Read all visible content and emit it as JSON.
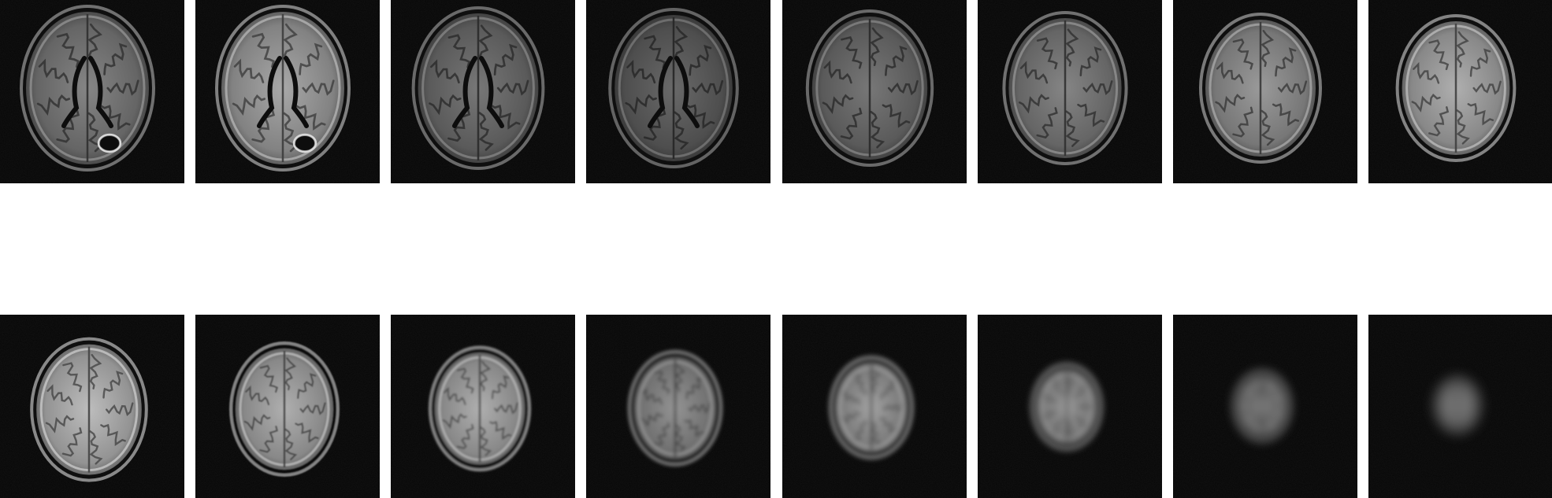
{
  "figure": {
    "rows": 2,
    "columns": 8,
    "background_color": "#ffffff",
    "tile_background_color": "#050505",
    "image_kind": "axial brain MRI slices (FLAIR-like), ascending from ventricles to vertex",
    "slices": [
      {
        "row": 1,
        "index": 1,
        "brightness": 0.55,
        "skull_scale": 1.0,
        "blur": 0.0,
        "ventricles": true,
        "lesion": true
      },
      {
        "row": 1,
        "index": 2,
        "brightness": 0.8,
        "skull_scale": 1.0,
        "blur": 0.0,
        "ventricles": true,
        "lesion": true
      },
      {
        "row": 1,
        "index": 3,
        "brightness": 0.45,
        "skull_scale": 0.98,
        "blur": 0.0,
        "ventricles": true,
        "lesion": false
      },
      {
        "row": 1,
        "index": 4,
        "brightness": 0.35,
        "skull_scale": 0.96,
        "blur": 0.0,
        "ventricles": true,
        "lesion": false
      },
      {
        "row": 1,
        "index": 5,
        "brightness": 0.45,
        "skull_scale": 0.94,
        "blur": 0.0,
        "ventricles": false,
        "lesion": false
      },
      {
        "row": 1,
        "index": 6,
        "brightness": 0.55,
        "skull_scale": 0.92,
        "blur": 0.0,
        "ventricles": false,
        "lesion": false
      },
      {
        "row": 1,
        "index": 7,
        "brightness": 0.7,
        "skull_scale": 0.9,
        "blur": 0.0,
        "ventricles": false,
        "lesion": false
      },
      {
        "row": 1,
        "index": 8,
        "brightness": 0.85,
        "skull_scale": 0.88,
        "blur": 0.0,
        "ventricles": false,
        "lesion": false
      },
      {
        "row": 2,
        "index": 1,
        "brightness": 0.95,
        "skull_scale": 0.86,
        "blur": 0.0,
        "ventricles": false,
        "lesion": false
      },
      {
        "row": 2,
        "index": 2,
        "brightness": 0.85,
        "skull_scale": 0.8,
        "blur": 0.2,
        "ventricles": false,
        "lesion": false
      },
      {
        "row": 2,
        "index": 3,
        "brightness": 0.85,
        "skull_scale": 0.74,
        "blur": 0.3,
        "ventricles": false,
        "lesion": false
      },
      {
        "row": 2,
        "index": 4,
        "brightness": 0.65,
        "skull_scale": 0.68,
        "blur": 0.5,
        "ventricles": false,
        "lesion": false
      },
      {
        "row": 2,
        "index": 5,
        "brightness": 0.75,
        "skull_scale": 0.6,
        "blur": 0.7,
        "ventricles": false,
        "lesion": false
      },
      {
        "row": 2,
        "index": 6,
        "brightness": 0.7,
        "skull_scale": 0.5,
        "blur": 1.0,
        "ventricles": false,
        "lesion": false
      },
      {
        "row": 2,
        "index": 7,
        "brightness": 0.55,
        "skull_scale": 0.4,
        "blur": 1.4,
        "ventricles": false,
        "lesion": false
      },
      {
        "row": 2,
        "index": 8,
        "brightness": 0.55,
        "skull_scale": 0.3,
        "blur": 1.8,
        "ventricles": false,
        "lesion": false
      }
    ]
  }
}
